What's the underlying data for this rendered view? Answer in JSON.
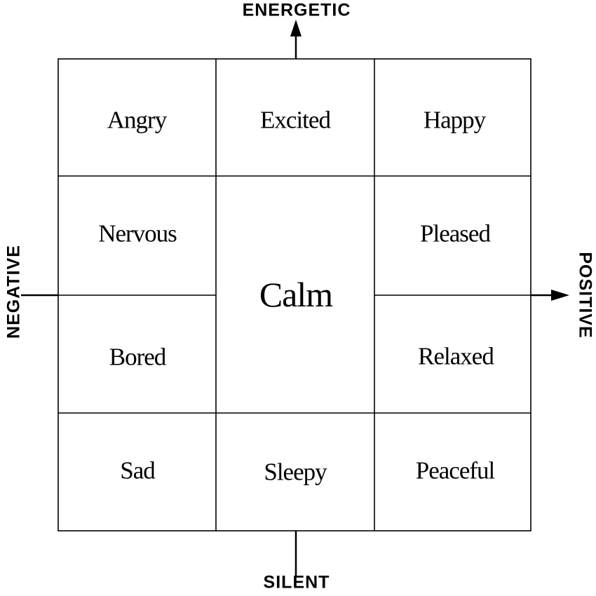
{
  "axes": {
    "top": "ENERGETIC",
    "bottom": "SILENT",
    "left": "NEGATIVE",
    "right": "POSITIVE"
  },
  "cells": {
    "angry": "Angry",
    "excited": "Excited",
    "happy": "Happy",
    "nervous": "Nervous",
    "pleased": "Pleased",
    "calm": "Calm",
    "bored": "Bored",
    "relaxed": "Relaxed",
    "sad": "Sad",
    "sleepy": "Sleepy",
    "peaceful": "Peaceful"
  },
  "colors": {
    "line": "#000000",
    "background": "#ffffff"
  }
}
